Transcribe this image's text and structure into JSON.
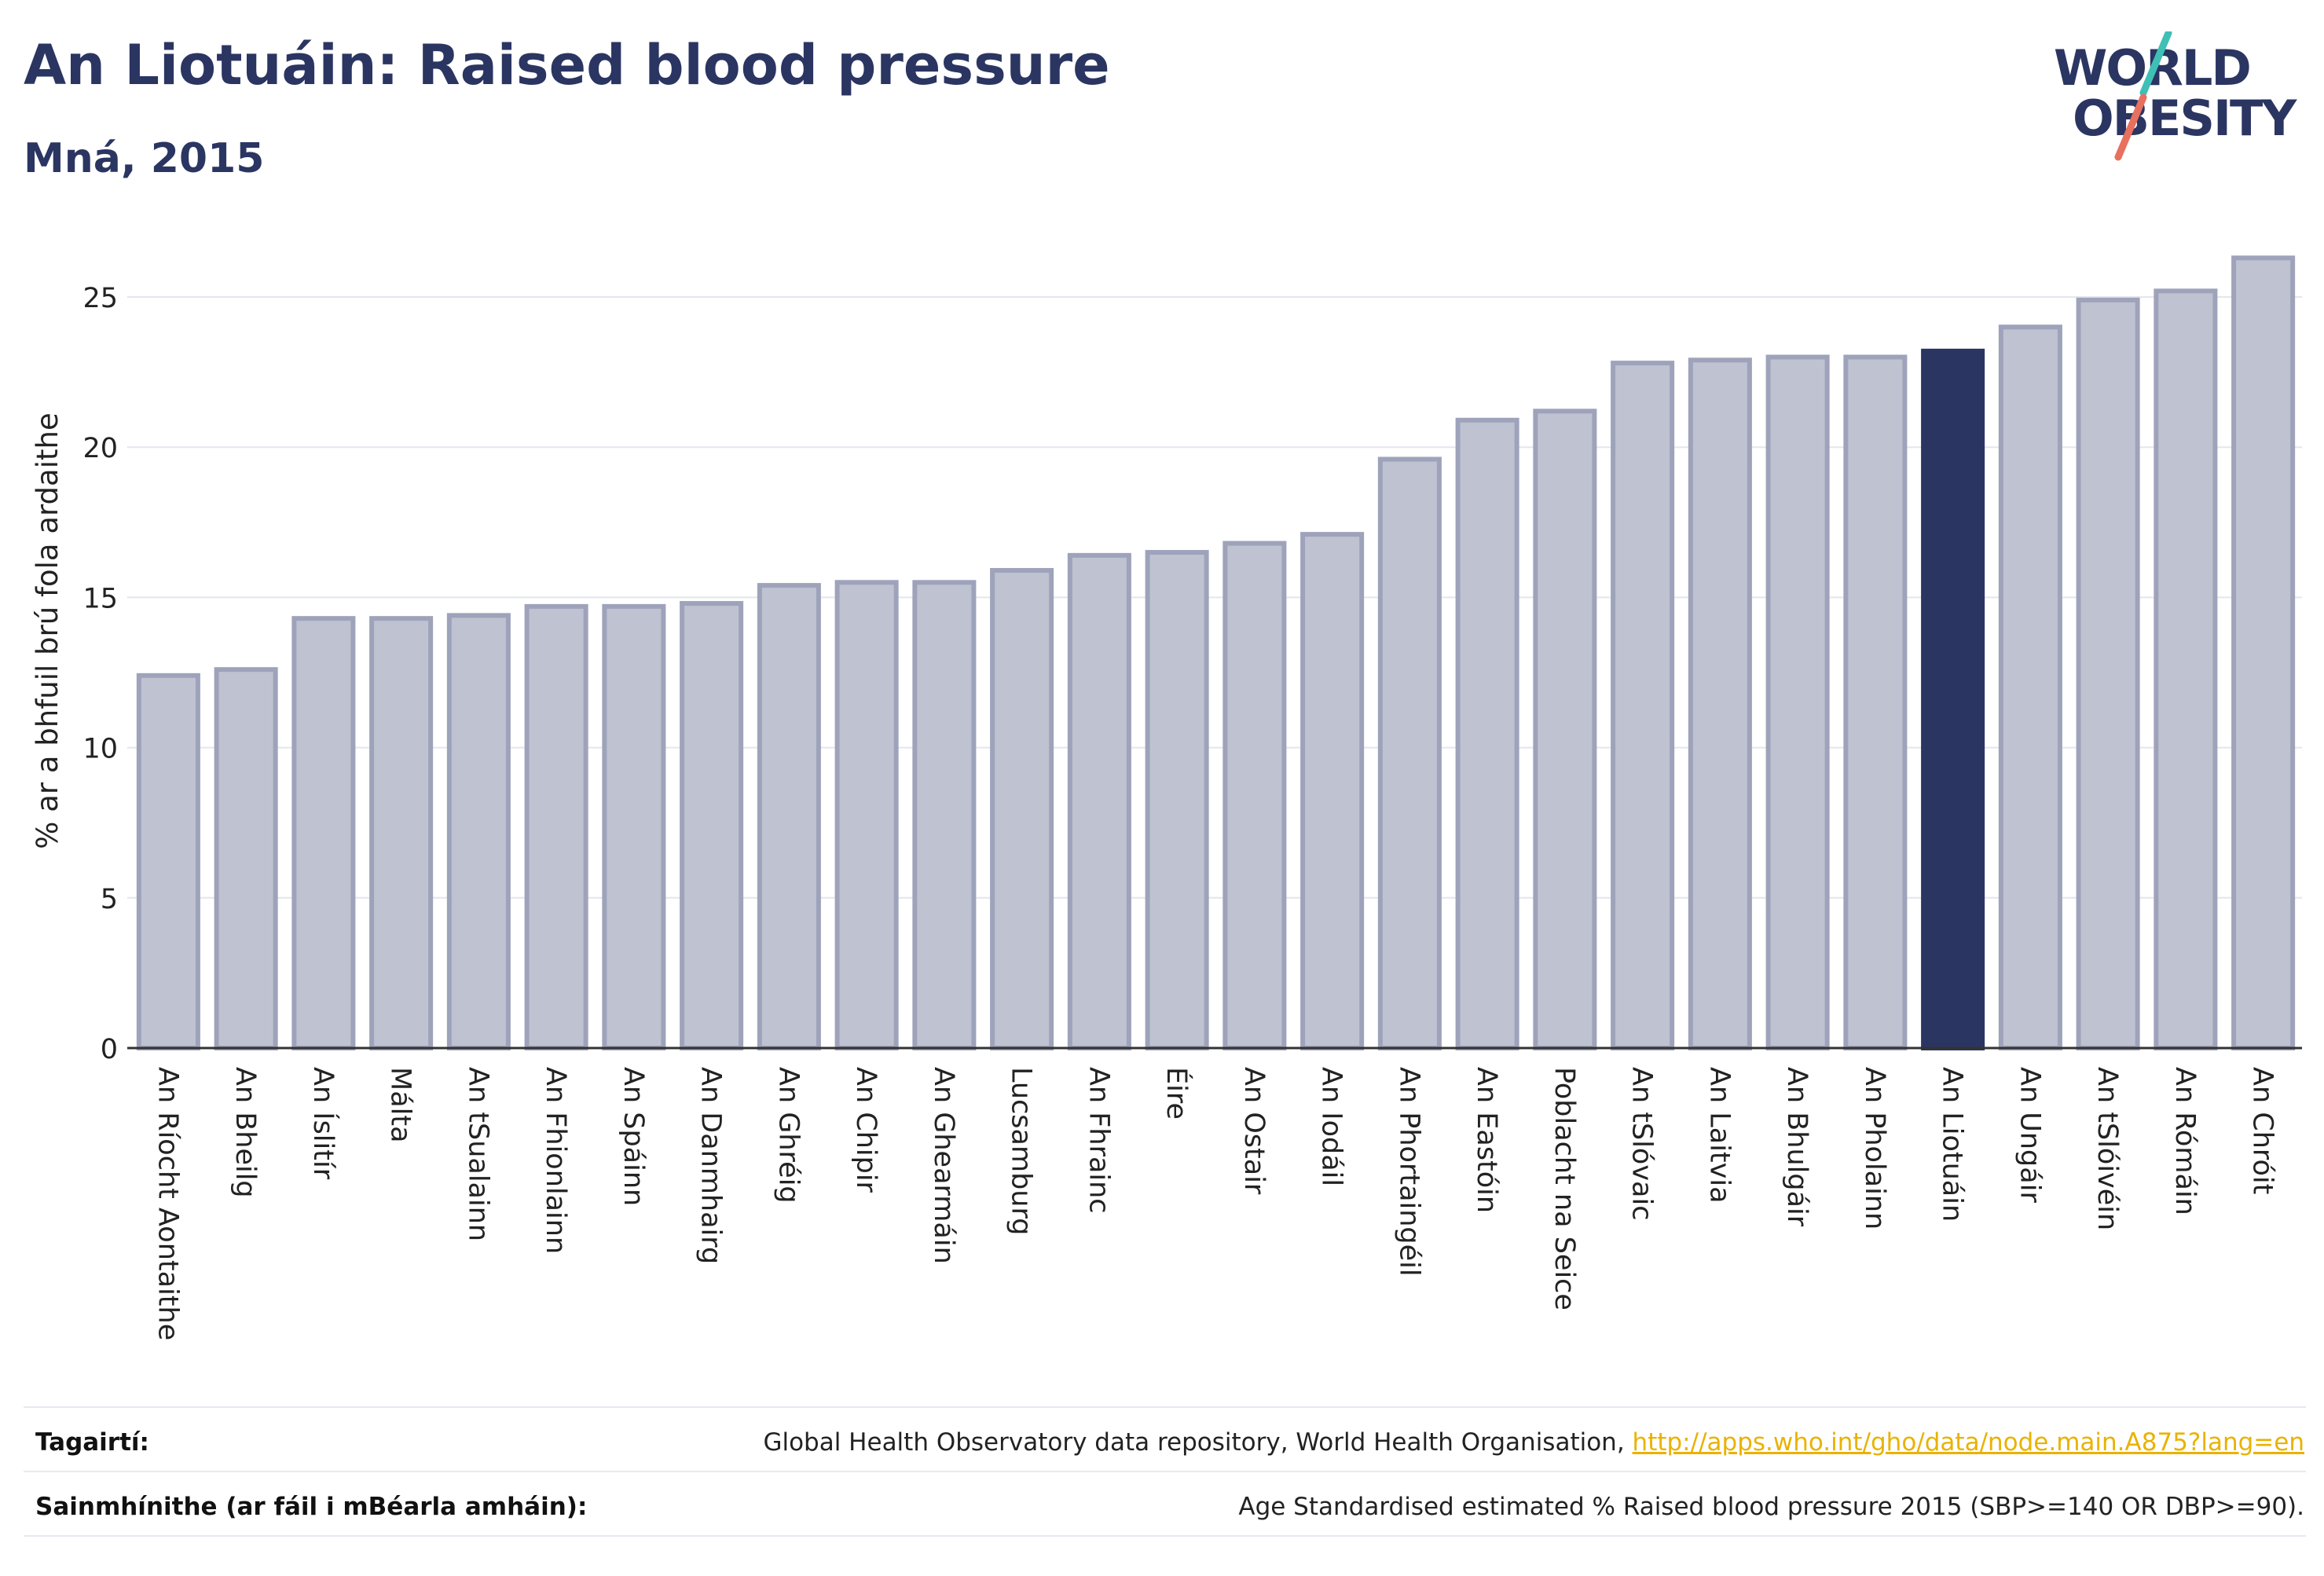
{
  "header": {
    "title": "An Liotuáin: Raised blood pressure",
    "subtitle": "Mná, 2015"
  },
  "logo": {
    "line1": "WORLD",
    "line2": "OBESITY"
  },
  "colors": {
    "bar_default": "#bfc2d0",
    "bar_border": "#9ea3bb",
    "bar_highlight": "#2b3562",
    "title": "#2b3562",
    "link": "#e9b200"
  },
  "chart_data": {
    "type": "bar",
    "ylabel": "% ar a bhfuil brú fola ardaithe",
    "ylim": [
      0,
      27
    ],
    "yticks": [
      0,
      5,
      10,
      15,
      20,
      25
    ],
    "grid": true,
    "highlight": "An Liotuáin",
    "categories": [
      "An Ríocht Aontaithe",
      "An Bheilg",
      "An Íslitír",
      "Málta",
      "An tSualainn",
      "An Fhionlainn",
      "An Spáinn",
      "An Danmhairg",
      "An Ghréig",
      "An Chipir",
      "An Ghearmáin",
      "Lucsamburg",
      "An Fhrainc",
      "Éire",
      "An Ostair",
      "An Iodáil",
      "An Phortaingéil",
      "An Eastóin",
      "Poblacht na Seice",
      "An tSlóvaic",
      "An Laitvia",
      "An Bhulgáir",
      "An Pholainn",
      "An Liotuáin",
      "An Ungáir",
      "An tSlóivéin",
      "An Rómáin",
      "An Chróit"
    ],
    "values": [
      12.4,
      12.6,
      14.3,
      14.3,
      14.4,
      14.7,
      14.7,
      14.8,
      15.4,
      15.5,
      15.5,
      15.9,
      16.4,
      16.5,
      16.8,
      17.1,
      19.6,
      20.9,
      21.2,
      22.8,
      22.9,
      23.0,
      23.0,
      23.2,
      24.0,
      24.9,
      25.2,
      26.3
    ]
  },
  "footer": {
    "references_label": "Tagairtí:",
    "references_text": "Global Health Observatory data repository, World Health Organisation, ",
    "references_link": "http://apps.who.int/gho/data/node.main.A875?lang=en",
    "definitions_label": "Sainmhínithe (ar fáil i mBéarla amháin):",
    "definitions_text": "Age Standardised estimated % Raised blood pressure 2015 (SBP>=140 OR DBP>=90)."
  }
}
